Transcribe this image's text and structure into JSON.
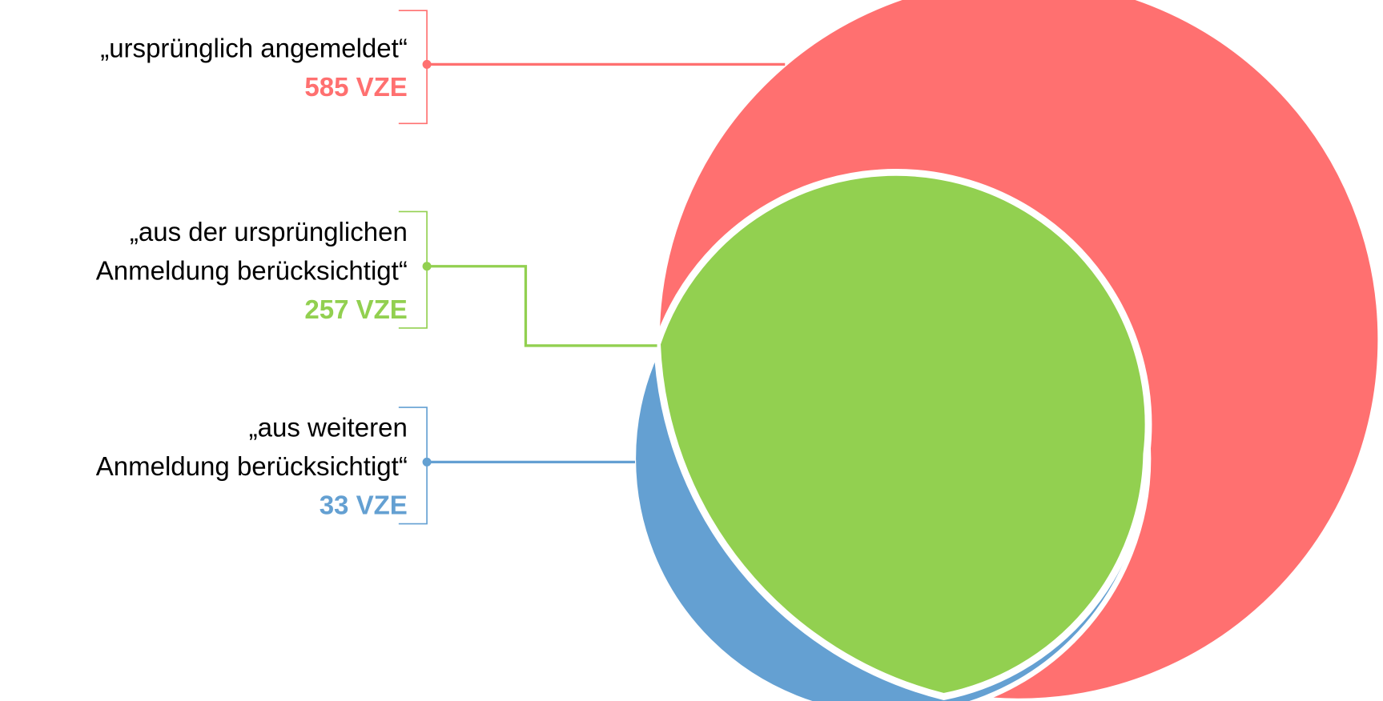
{
  "items": [
    {
      "lines": [
        "„ursprünglich angemeldet“"
      ],
      "value": "585 VZE",
      "color": "#ff7070"
    },
    {
      "lines": [
        "„aus der ursprünglichen",
        "Anmeldung berücksichtigt“"
      ],
      "value": "257 VZE",
      "color": "#92d050"
    },
    {
      "lines": [
        "„aus weiteren",
        "Anmeldung berücksichtigt“"
      ],
      "value": "33 VZE",
      "color": "#64a0d2"
    }
  ]
}
